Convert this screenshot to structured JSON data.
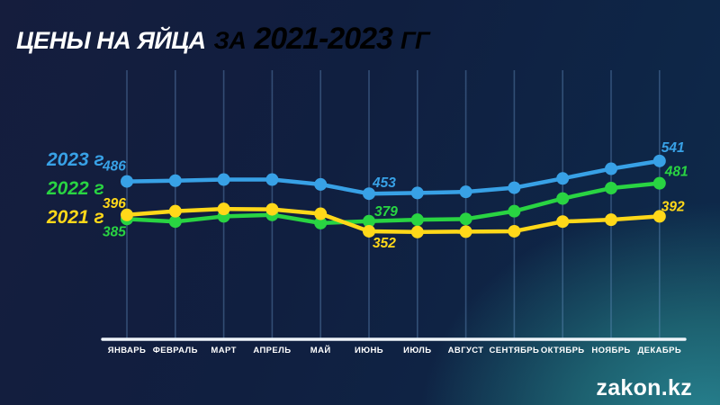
{
  "title": {
    "part1": "ЦЕНЫ НА ЯЙЦА",
    "part2": "ЗА",
    "years": "2021-2023",
    "suffix": "ГГ"
  },
  "legend": {
    "items": [
      {
        "label": "2023 г",
        "color": "#38a1e6"
      },
      {
        "label": "2022 г",
        "color": "#29d442"
      },
      {
        "label": "2021 г",
        "color": "#ffd819"
      }
    ]
  },
  "footer": {
    "logo": "zakon.kz"
  },
  "colors": {
    "background_navy": "#141d3c",
    "background_teal": "#1d6170",
    "title_accent": "#ffd819",
    "axis": "#eef4f9",
    "gridline": "#6c98ca"
  },
  "chart_data": {
    "type": "line",
    "title": "ЦЕНЫ НА ЯЙЦА ЗА 2021-2023 ГГ",
    "categories": [
      "ЯНВАРЬ",
      "ФЕВРАЛЬ",
      "МАРТ",
      "АПРЕЛЬ",
      "МАЙ",
      "ИЮНЬ",
      "ИЮЛЬ",
      "АВГУСТ",
      "СЕНТЯБРЬ",
      "ОКТЯБРЬ",
      "НОЯБРЬ",
      "ДЕКАБРЬ"
    ],
    "xlabel": "",
    "ylabel": "",
    "ylim": [
      330,
      560
    ],
    "grid": "vertical-only",
    "legend_position": "left",
    "series": [
      {
        "name": "2023 г",
        "color": "#38a1e6",
        "values": [
          486,
          488,
          491,
          491,
          478,
          453,
          455,
          458,
          469,
          494,
          520,
          541
        ],
        "labeled_points": [
          {
            "month": "ЯНВАРЬ",
            "month_index": 0,
            "value": 486
          },
          {
            "month": "ИЮНЬ",
            "month_index": 5,
            "value": 453
          },
          {
            "month": "ДЕКАБРЬ",
            "month_index": 11,
            "value": 541
          }
        ]
      },
      {
        "name": "2022 г",
        "color": "#29d442",
        "values": [
          385,
          378,
          392,
          396,
          374,
          379,
          383,
          385,
          406,
          440,
          468,
          481
        ],
        "labeled_points": [
          {
            "month": "ЯНВАРЬ",
            "month_index": 0,
            "value": 385
          },
          {
            "month": "ИЮНЬ",
            "month_index": 5,
            "value": 379
          },
          {
            "month": "ДЕКАБРЬ",
            "month_index": 11,
            "value": 481
          }
        ]
      },
      {
        "name": "2021 г",
        "color": "#ffd819",
        "values": [
          396,
          406,
          412,
          411,
          399,
          352,
          350,
          351,
          352,
          378,
          383,
          392
        ],
        "labeled_points": [
          {
            "month": "ЯНВАРЬ",
            "month_index": 0,
            "value": 396
          },
          {
            "month": "ИЮНЬ",
            "month_index": 5,
            "value": 352
          },
          {
            "month": "ДЕКАБРЬ",
            "month_index": 11,
            "value": 392
          }
        ]
      }
    ]
  }
}
